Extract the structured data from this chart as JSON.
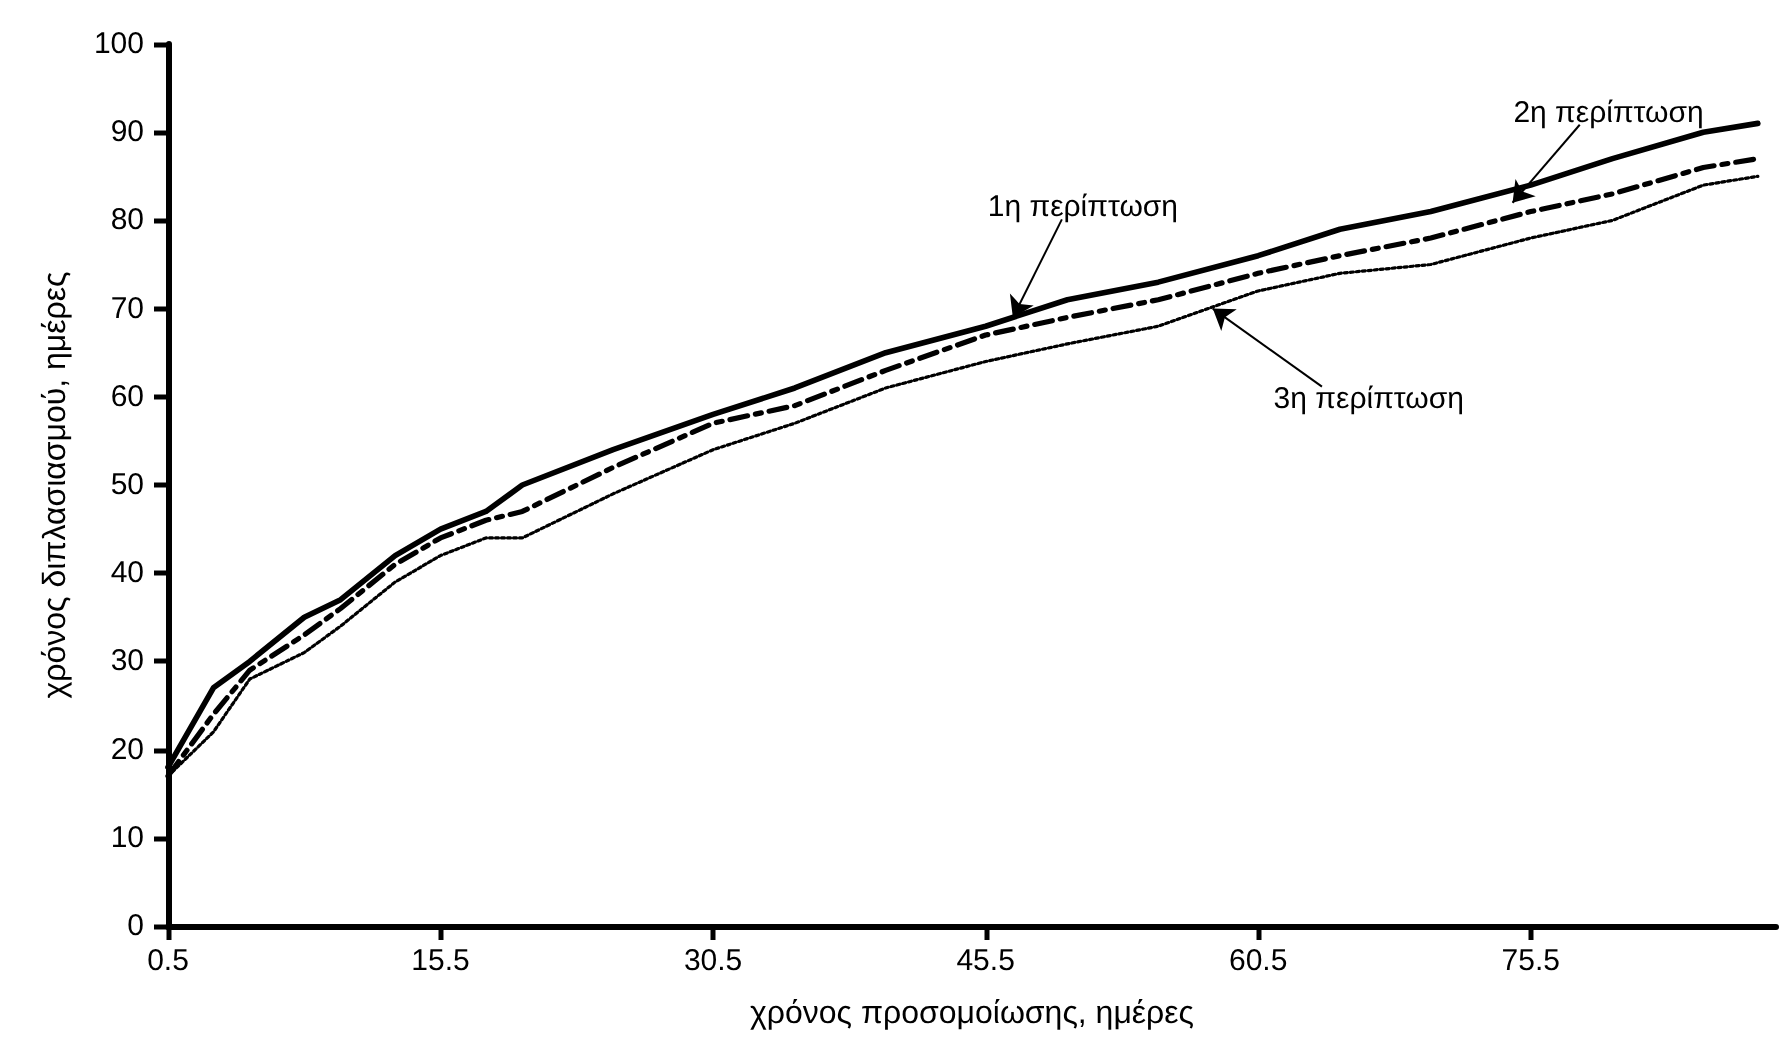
{
  "chart_data": {
    "type": "line",
    "xlabel": "χρόνος προσομοίωσης, ημέρες",
    "ylabel": "χρόνος διπλασιασμού, ημέρες",
    "x": [
      0.5,
      3,
      5,
      8,
      10,
      13,
      15.5,
      18,
      20,
      25,
      30.5,
      35,
      40,
      45.5,
      50,
      55,
      60.5,
      65,
      70,
      75.5,
      80,
      85,
      88
    ],
    "series": [
      {
        "color": "#000000",
        "line_style": "solid",
        "values": [
          18,
          27,
          30,
          35,
          37,
          42,
          45,
          47,
          50,
          54,
          58,
          61,
          65,
          68,
          71,
          73,
          76,
          79,
          81,
          84,
          87,
          90,
          91
        ]
      },
      {
        "color": "#000000",
        "line_style": "dashed",
        "values": [
          17,
          24,
          29,
          33,
          36,
          41,
          44,
          46,
          47,
          52,
          57,
          59,
          63,
          67,
          69,
          71,
          74,
          76,
          78,
          81,
          83,
          86,
          87
        ]
      },
      {
        "color": "#000000",
        "line_style": "dotted",
        "values": [
          17,
          22,
          28,
          31,
          34,
          39,
          42,
          44,
          44,
          49,
          54,
          57,
          61,
          64,
          66,
          68,
          72,
          74,
          75,
          78,
          80,
          84,
          85
        ]
      }
    ],
    "xlim": [
      0.5,
      89
    ],
    "xticks": [
      0.5,
      15.5,
      30.5,
      45.5,
      60.5,
      75.5
    ],
    "ylim": [
      0,
      100
    ],
    "yticks": [
      0,
      10,
      20,
      30,
      40,
      50,
      60,
      70,
      80,
      90,
      100
    ],
    "grid": false,
    "marker": "none",
    "annotations": [
      {
        "text": "1η περίπτωση",
        "x": 47,
        "y": 69
      },
      {
        "text": "2η περίπτωση",
        "x": 74.5,
        "y": 82
      },
      {
        "text": "3η περίπτωση",
        "x": 58,
        "y": 70
      }
    ]
  }
}
